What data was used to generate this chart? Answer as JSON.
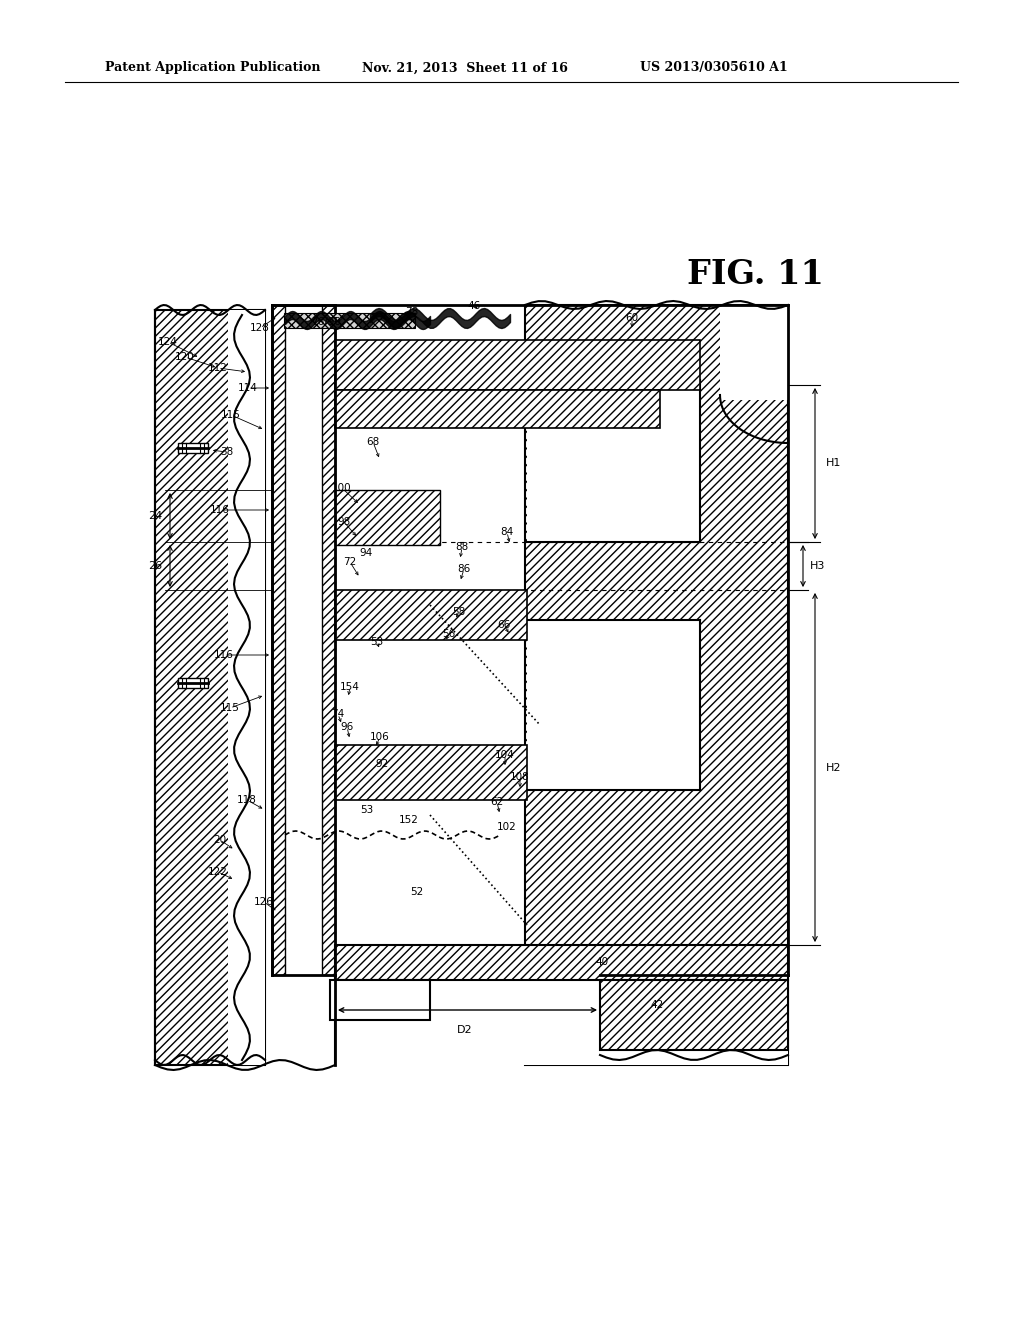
{
  "header_left": "Patent Application Publication",
  "header_mid": "Nov. 21, 2013  Sheet 11 of 16",
  "header_right": "US 2013/0305610 A1",
  "fig_label": "FIG. 11",
  "bg_color": "#ffffff",
  "line_color": "#000000"
}
